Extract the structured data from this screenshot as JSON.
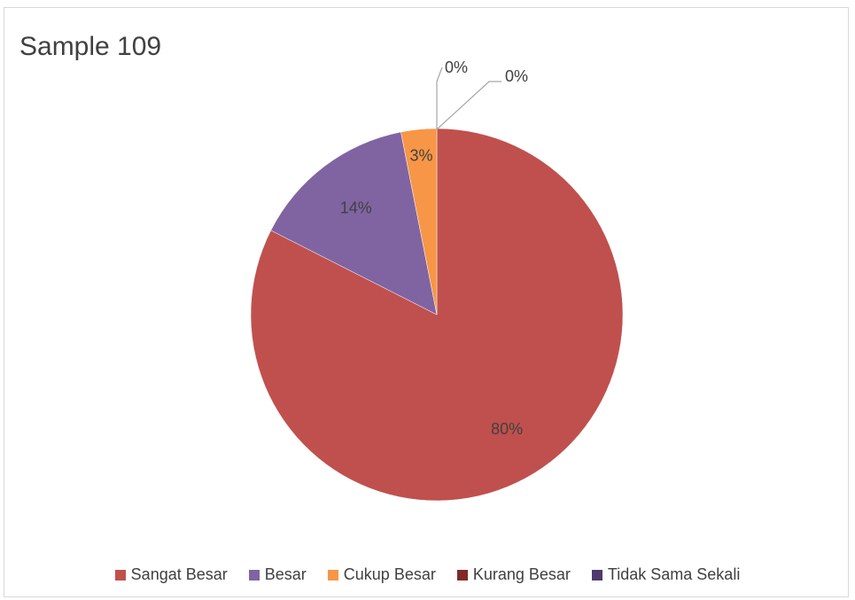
{
  "chart_data": {
    "type": "pie",
    "title": "Sample 109",
    "categories": [
      "Sangat Besar",
      "Besar",
      "Cukup Besar",
      "Kurang Besar",
      "Tidak Sama Sekali"
    ],
    "values": [
      80,
      14,
      3,
      0,
      0
    ],
    "data_labels": [
      "80%",
      "14%",
      "3%",
      "0%",
      "0%"
    ],
    "colors": [
      "#c0504d",
      "#8064a2",
      "#f79646",
      "#7f2a28",
      "#4f3a6e"
    ],
    "start_angle": "12 o'clock",
    "direction": "clockwise",
    "legend_position": "bottom"
  }
}
